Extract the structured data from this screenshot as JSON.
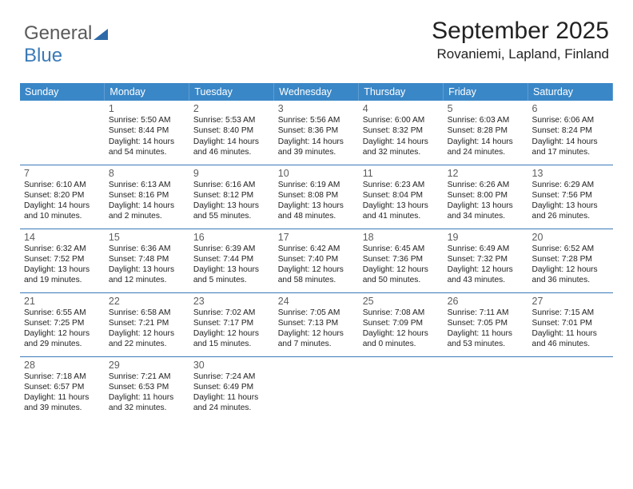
{
  "logo": {
    "text1": "General",
    "text2": "Blue"
  },
  "header": {
    "month_title": "September 2025",
    "location": "Rovaniemi, Lapland, Finland"
  },
  "colors": {
    "header_bg": "#3a87c7",
    "header_text": "#ffffff",
    "cell_border": "#3a7ab8",
    "daynum": "#5d5d5d",
    "body_text": "#222222",
    "logo_gray": "#5a5a5a",
    "logo_blue": "#3a7ab8"
  },
  "daynames": [
    "Sunday",
    "Monday",
    "Tuesday",
    "Wednesday",
    "Thursday",
    "Friday",
    "Saturday"
  ],
  "weeks": [
    [
      {
        "n": "",
        "sr": "",
        "ss": "",
        "dl": ""
      },
      {
        "n": "1",
        "sr": "5:50 AM",
        "ss": "8:44 PM",
        "dl": "14 hours and 54 minutes."
      },
      {
        "n": "2",
        "sr": "5:53 AM",
        "ss": "8:40 PM",
        "dl": "14 hours and 46 minutes."
      },
      {
        "n": "3",
        "sr": "5:56 AM",
        "ss": "8:36 PM",
        "dl": "14 hours and 39 minutes."
      },
      {
        "n": "4",
        "sr": "6:00 AM",
        "ss": "8:32 PM",
        "dl": "14 hours and 32 minutes."
      },
      {
        "n": "5",
        "sr": "6:03 AM",
        "ss": "8:28 PM",
        "dl": "14 hours and 24 minutes."
      },
      {
        "n": "6",
        "sr": "6:06 AM",
        "ss": "8:24 PM",
        "dl": "14 hours and 17 minutes."
      }
    ],
    [
      {
        "n": "7",
        "sr": "6:10 AM",
        "ss": "8:20 PM",
        "dl": "14 hours and 10 minutes."
      },
      {
        "n": "8",
        "sr": "6:13 AM",
        "ss": "8:16 PM",
        "dl": "14 hours and 2 minutes."
      },
      {
        "n": "9",
        "sr": "6:16 AM",
        "ss": "8:12 PM",
        "dl": "13 hours and 55 minutes."
      },
      {
        "n": "10",
        "sr": "6:19 AM",
        "ss": "8:08 PM",
        "dl": "13 hours and 48 minutes."
      },
      {
        "n": "11",
        "sr": "6:23 AM",
        "ss": "8:04 PM",
        "dl": "13 hours and 41 minutes."
      },
      {
        "n": "12",
        "sr": "6:26 AM",
        "ss": "8:00 PM",
        "dl": "13 hours and 34 minutes."
      },
      {
        "n": "13",
        "sr": "6:29 AM",
        "ss": "7:56 PM",
        "dl": "13 hours and 26 minutes."
      }
    ],
    [
      {
        "n": "14",
        "sr": "6:32 AM",
        "ss": "7:52 PM",
        "dl": "13 hours and 19 minutes."
      },
      {
        "n": "15",
        "sr": "6:36 AM",
        "ss": "7:48 PM",
        "dl": "13 hours and 12 minutes."
      },
      {
        "n": "16",
        "sr": "6:39 AM",
        "ss": "7:44 PM",
        "dl": "13 hours and 5 minutes."
      },
      {
        "n": "17",
        "sr": "6:42 AM",
        "ss": "7:40 PM",
        "dl": "12 hours and 58 minutes."
      },
      {
        "n": "18",
        "sr": "6:45 AM",
        "ss": "7:36 PM",
        "dl": "12 hours and 50 minutes."
      },
      {
        "n": "19",
        "sr": "6:49 AM",
        "ss": "7:32 PM",
        "dl": "12 hours and 43 minutes."
      },
      {
        "n": "20",
        "sr": "6:52 AM",
        "ss": "7:28 PM",
        "dl": "12 hours and 36 minutes."
      }
    ],
    [
      {
        "n": "21",
        "sr": "6:55 AM",
        "ss": "7:25 PM",
        "dl": "12 hours and 29 minutes."
      },
      {
        "n": "22",
        "sr": "6:58 AM",
        "ss": "7:21 PM",
        "dl": "12 hours and 22 minutes."
      },
      {
        "n": "23",
        "sr": "7:02 AM",
        "ss": "7:17 PM",
        "dl": "12 hours and 15 minutes."
      },
      {
        "n": "24",
        "sr": "7:05 AM",
        "ss": "7:13 PM",
        "dl": "12 hours and 7 minutes."
      },
      {
        "n": "25",
        "sr": "7:08 AM",
        "ss": "7:09 PM",
        "dl": "12 hours and 0 minutes."
      },
      {
        "n": "26",
        "sr": "7:11 AM",
        "ss": "7:05 PM",
        "dl": "11 hours and 53 minutes."
      },
      {
        "n": "27",
        "sr": "7:15 AM",
        "ss": "7:01 PM",
        "dl": "11 hours and 46 minutes."
      }
    ],
    [
      {
        "n": "28",
        "sr": "7:18 AM",
        "ss": "6:57 PM",
        "dl": "11 hours and 39 minutes."
      },
      {
        "n": "29",
        "sr": "7:21 AM",
        "ss": "6:53 PM",
        "dl": "11 hours and 32 minutes."
      },
      {
        "n": "30",
        "sr": "7:24 AM",
        "ss": "6:49 PM",
        "dl": "11 hours and 24 minutes."
      },
      {
        "n": "",
        "sr": "",
        "ss": "",
        "dl": ""
      },
      {
        "n": "",
        "sr": "",
        "ss": "",
        "dl": ""
      },
      {
        "n": "",
        "sr": "",
        "ss": "",
        "dl": ""
      },
      {
        "n": "",
        "sr": "",
        "ss": "",
        "dl": ""
      }
    ]
  ],
  "labels": {
    "sunrise": "Sunrise:",
    "sunset": "Sunset:",
    "daylight": "Daylight:"
  }
}
